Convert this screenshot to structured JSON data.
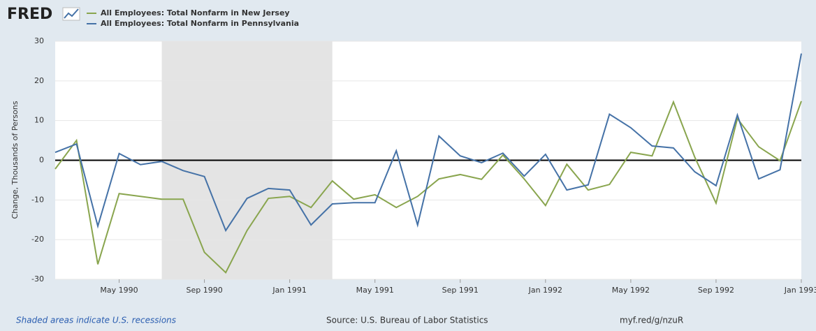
{
  "logo": "FRED",
  "chart_data": {
    "type": "line",
    "y_label": "Change, Thousands of Persons",
    "x": [
      "1990-02",
      "1990-03",
      "1990-04",
      "1990-05",
      "1990-06",
      "1990-07",
      "1990-08",
      "1990-09",
      "1990-10",
      "1990-11",
      "1990-12",
      "1991-01",
      "1991-02",
      "1991-03",
      "1991-04",
      "1991-05",
      "1991-06",
      "1991-07",
      "1991-08",
      "1991-09",
      "1991-10",
      "1991-11",
      "1991-12",
      "1992-01",
      "1992-02",
      "1992-03",
      "1992-04",
      "1992-05",
      "1992-06",
      "1992-07",
      "1992-08",
      "1992-09",
      "1992-10",
      "1992-11",
      "1992-12",
      "1993-01"
    ],
    "series": [
      {
        "name": "All Employees: Total Nonfarm in New Jersey",
        "color": "#89a54e",
        "values": [
          -2.2,
          5.0,
          -26.2,
          -8.4,
          -9.1,
          -9.8,
          -9.8,
          -23.2,
          -28.3,
          -17.7,
          -9.6,
          -9.1,
          -11.9,
          -5.2,
          -9.8,
          -8.7,
          -11.9,
          -9.1,
          -4.7,
          -3.6,
          -4.8,
          1.3,
          -4.7,
          -11.4,
          -1.0,
          -7.5,
          -6.1,
          2.0,
          1.1,
          14.7,
          0.8,
          -10.8,
          10.5,
          3.4,
          -0.1,
          14.9
        ]
      },
      {
        "name": "All Employees: Total Nonfarm in Pennsylvania",
        "color": "#4572a7",
        "values": [
          2.0,
          4.1,
          -16.6,
          1.7,
          -1.1,
          -0.3,
          -2.6,
          -4.1,
          -17.7,
          -9.6,
          -7.1,
          -7.5,
          -16.3,
          -11.0,
          -10.7,
          -10.7,
          2.4,
          -16.3,
          6.1,
          1.1,
          -0.6,
          1.8,
          -4.0,
          1.5,
          -7.5,
          -6.2,
          11.6,
          8.2,
          3.6,
          3.1,
          -2.9,
          -6.4,
          11.4,
          -4.7,
          -2.4,
          26.9
        ]
      }
    ],
    "xlim": [
      "1990-02",
      "1993-01"
    ],
    "xticks": [
      {
        "value": "1990-05",
        "label": "May 1990"
      },
      {
        "value": "1990-09",
        "label": "Sep 1990"
      },
      {
        "value": "1991-01",
        "label": "Jan 1991"
      },
      {
        "value": "1991-05",
        "label": "May 1991"
      },
      {
        "value": "1991-09",
        "label": "Sep 1991"
      },
      {
        "value": "1992-01",
        "label": "Jan 1992"
      },
      {
        "value": "1992-05",
        "label": "May 1992"
      },
      {
        "value": "1992-09",
        "label": "Sep 1992"
      },
      {
        "value": "1993-01",
        "label": "Jan 1993"
      }
    ],
    "ylim": [
      -30,
      30
    ],
    "yticks": [
      -30,
      -20,
      -10,
      0,
      10,
      20,
      30
    ],
    "grid": true,
    "recessions": [
      [
        "1990-07",
        "1991-03"
      ]
    ],
    "recession_note": "Shaded areas indicate U.S. recessions",
    "source": "Source: U.S. Bureau of Labor Statistics",
    "link": "myf.red/g/nzuR"
  }
}
